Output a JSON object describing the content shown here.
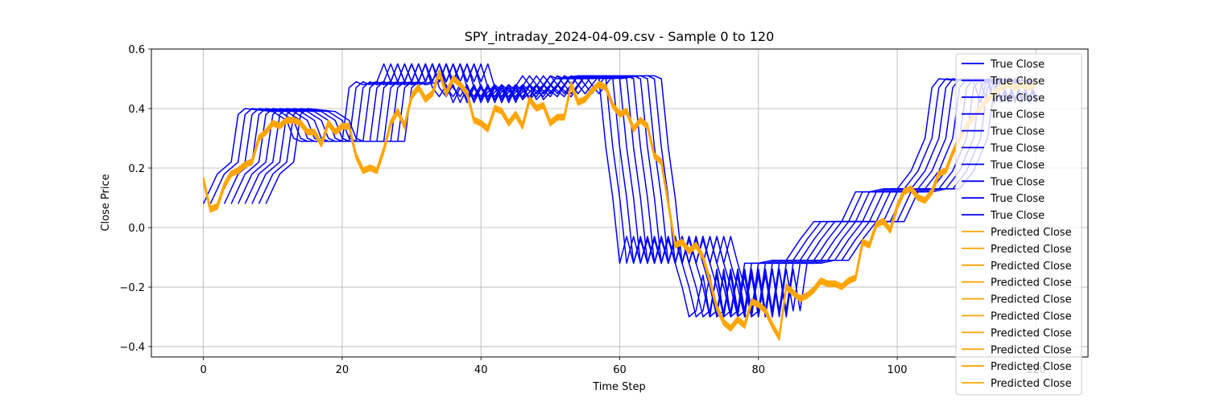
{
  "chart_data": {
    "type": "line",
    "title": "SPY_intraday_2024-04-09.csv - Sample 0 to 120",
    "xlabel": "Time Step",
    "ylabel": "Close Price",
    "xlim": [
      -7.5,
      127.5
    ],
    "ylim": [
      -0.435,
      0.6
    ],
    "xticks": [
      0,
      20,
      40,
      60,
      80,
      100,
      120
    ],
    "yticks": [
      -0.4,
      -0.2,
      0.0,
      0.2,
      0.4,
      0.6
    ],
    "xtick_labels": [
      "0",
      "20",
      "40",
      "60",
      "80",
      "100",
      "120"
    ],
    "ytick_labels": [
      "−0.4",
      "−0.2",
      "0.0",
      "0.2",
      "0.4",
      "0.6"
    ],
    "grid": true,
    "legend_position": "top-right",
    "colors": {
      "true": "#0000ff",
      "pred": "#ffa500"
    },
    "true_close_base": [
      {
        "x": 0,
        "y": 0.08
      },
      {
        "x": 2,
        "y": 0.18
      },
      {
        "x": 4,
        "y": 0.22
      },
      {
        "x": 5,
        "y": 0.38
      },
      {
        "x": 6,
        "y": 0.4
      },
      {
        "x": 10,
        "y": 0.39
      },
      {
        "x": 12,
        "y": 0.36
      },
      {
        "x": 13,
        "y": 0.3
      },
      {
        "x": 14,
        "y": 0.29
      },
      {
        "x": 20,
        "y": 0.29
      },
      {
        "x": 21,
        "y": 0.47
      },
      {
        "x": 22,
        "y": 0.49
      },
      {
        "x": 23,
        "y": 0.48
      },
      {
        "x": 25,
        "y": 0.49
      },
      {
        "x": 26,
        "y": 0.55
      },
      {
        "x": 27,
        "y": 0.49
      },
      {
        "x": 28,
        "y": 0.55
      },
      {
        "x": 29,
        "y": 0.49
      },
      {
        "x": 30,
        "y": 0.55
      },
      {
        "x": 31,
        "y": 0.49
      },
      {
        "x": 32,
        "y": 0.55
      },
      {
        "x": 33,
        "y": 0.47
      },
      {
        "x": 34,
        "y": 0.44
      },
      {
        "x": 35,
        "y": 0.48
      },
      {
        "x": 36,
        "y": 0.42
      },
      {
        "x": 37,
        "y": 0.47
      },
      {
        "x": 38,
        "y": 0.43
      },
      {
        "x": 39,
        "y": 0.48
      },
      {
        "x": 40,
        "y": 0.43
      },
      {
        "x": 42,
        "y": 0.48
      },
      {
        "x": 44,
        "y": 0.44
      },
      {
        "x": 46,
        "y": 0.51
      },
      {
        "x": 48,
        "y": 0.45
      },
      {
        "x": 50,
        "y": 0.51
      },
      {
        "x": 51,
        "y": 0.5
      },
      {
        "x": 54,
        "y": 0.51
      },
      {
        "x": 56,
        "y": 0.51
      },
      {
        "x": 57,
        "y": 0.5
      },
      {
        "x": 58,
        "y": 0.27
      },
      {
        "x": 59,
        "y": 0.1
      },
      {
        "x": 60,
        "y": -0.12
      },
      {
        "x": 61,
        "y": -0.03
      },
      {
        "x": 62,
        "y": -0.12
      },
      {
        "x": 63,
        "y": -0.04
      },
      {
        "x": 64,
        "y": -0.12
      },
      {
        "x": 65,
        "y": -0.03
      },
      {
        "x": 66,
        "y": -0.12
      },
      {
        "x": 67,
        "y": -0.03
      },
      {
        "x": 68,
        "y": -0.12
      },
      {
        "x": 69,
        "y": -0.2
      },
      {
        "x": 70,
        "y": -0.3
      },
      {
        "x": 71,
        "y": -0.28
      },
      {
        "x": 72,
        "y": -0.16
      },
      {
        "x": 73,
        "y": -0.3
      },
      {
        "x": 74,
        "y": -0.14
      },
      {
        "x": 75,
        "y": -0.3
      },
      {
        "x": 76,
        "y": -0.14
      },
      {
        "x": 77,
        "y": -0.28
      },
      {
        "x": 78,
        "y": -0.12
      },
      {
        "x": 80,
        "y": -0.12
      },
      {
        "x": 82,
        "y": -0.11
      },
      {
        "x": 84,
        "y": -0.11
      },
      {
        "x": 86,
        "y": -0.04
      },
      {
        "x": 88,
        "y": 0.02
      },
      {
        "x": 92,
        "y": 0.02
      },
      {
        "x": 94,
        "y": 0.12
      },
      {
        "x": 96,
        "y": 0.12
      },
      {
        "x": 98,
        "y": 0.13
      },
      {
        "x": 100,
        "y": 0.13
      },
      {
        "x": 102,
        "y": 0.19
      },
      {
        "x": 104,
        "y": 0.3
      },
      {
        "x": 105,
        "y": 0.47
      },
      {
        "x": 106,
        "y": 0.5
      },
      {
        "x": 111,
        "y": 0.49
      },
      {
        "x": 112,
        "y": 0.42
      },
      {
        "x": 113,
        "y": 0.5
      },
      {
        "x": 114,
        "y": 0.43
      },
      {
        "x": 115,
        "y": 0.5
      },
      {
        "x": 116,
        "y": 0.43
      },
      {
        "x": 117,
        "y": 0.5
      },
      {
        "x": 118,
        "y": 0.43
      },
      {
        "x": 119,
        "y": 0.5
      },
      {
        "x": 120,
        "y": 0.44
      }
    ],
    "true_close_series_shifts": [
      0,
      1,
      2,
      3,
      4,
      5,
      6,
      7,
      8,
      9
    ],
    "predicted_close": [
      {
        "x": 0,
        "y": 0.16
      },
      {
        "x": 1,
        "y": 0.06
      },
      {
        "x": 2,
        "y": 0.07
      },
      {
        "x": 3,
        "y": 0.14
      },
      {
        "x": 4,
        "y": 0.18
      },
      {
        "x": 5,
        "y": 0.19
      },
      {
        "x": 6,
        "y": 0.21
      },
      {
        "x": 7,
        "y": 0.22
      },
      {
        "x": 8,
        "y": 0.3
      },
      {
        "x": 9,
        "y": 0.32
      },
      {
        "x": 10,
        "y": 0.35
      },
      {
        "x": 11,
        "y": 0.34
      },
      {
        "x": 12,
        "y": 0.36
      },
      {
        "x": 13,
        "y": 0.36
      },
      {
        "x": 14,
        "y": 0.35
      },
      {
        "x": 15,
        "y": 0.32
      },
      {
        "x": 16,
        "y": 0.32
      },
      {
        "x": 17,
        "y": 0.28
      },
      {
        "x": 18,
        "y": 0.35
      },
      {
        "x": 19,
        "y": 0.32
      },
      {
        "x": 20,
        "y": 0.34
      },
      {
        "x": 21,
        "y": 0.34
      },
      {
        "x": 22,
        "y": 0.24
      },
      {
        "x": 23,
        "y": 0.19
      },
      {
        "x": 24,
        "y": 0.2
      },
      {
        "x": 25,
        "y": 0.19
      },
      {
        "x": 26,
        "y": 0.26
      },
      {
        "x": 27,
        "y": 0.35
      },
      {
        "x": 28,
        "y": 0.39
      },
      {
        "x": 29,
        "y": 0.34
      },
      {
        "x": 30,
        "y": 0.44
      },
      {
        "x": 31,
        "y": 0.47
      },
      {
        "x": 32,
        "y": 0.43
      },
      {
        "x": 33,
        "y": 0.45
      },
      {
        "x": 34,
        "y": 0.52
      },
      {
        "x": 35,
        "y": 0.45
      },
      {
        "x": 36,
        "y": 0.5
      },
      {
        "x": 37,
        "y": 0.48
      },
      {
        "x": 38,
        "y": 0.45
      },
      {
        "x": 39,
        "y": 0.36
      },
      {
        "x": 40,
        "y": 0.35
      },
      {
        "x": 41,
        "y": 0.33
      },
      {
        "x": 42,
        "y": 0.4
      },
      {
        "x": 43,
        "y": 0.39
      },
      {
        "x": 44,
        "y": 0.35
      },
      {
        "x": 45,
        "y": 0.38
      },
      {
        "x": 46,
        "y": 0.34
      },
      {
        "x": 47,
        "y": 0.43
      },
      {
        "x": 48,
        "y": 0.4
      },
      {
        "x": 49,
        "y": 0.41
      },
      {
        "x": 50,
        "y": 0.35
      },
      {
        "x": 51,
        "y": 0.37
      },
      {
        "x": 52,
        "y": 0.37
      },
      {
        "x": 53,
        "y": 0.48
      },
      {
        "x": 54,
        "y": 0.42
      },
      {
        "x": 55,
        "y": 0.43
      },
      {
        "x": 56,
        "y": 0.46
      },
      {
        "x": 57,
        "y": 0.48
      },
      {
        "x": 58,
        "y": 0.47
      },
      {
        "x": 59,
        "y": 0.41
      },
      {
        "x": 60,
        "y": 0.38
      },
      {
        "x": 61,
        "y": 0.39
      },
      {
        "x": 62,
        "y": 0.33
      },
      {
        "x": 63,
        "y": 0.36
      },
      {
        "x": 64,
        "y": 0.34
      },
      {
        "x": 65,
        "y": 0.24
      },
      {
        "x": 66,
        "y": 0.22
      },
      {
        "x": 67,
        "y": 0.08
      },
      {
        "x": 68,
        "y": -0.06
      },
      {
        "x": 69,
        "y": -0.05
      },
      {
        "x": 70,
        "y": -0.08
      },
      {
        "x": 71,
        "y": -0.06
      },
      {
        "x": 72,
        "y": -0.1
      },
      {
        "x": 73,
        "y": -0.18
      },
      {
        "x": 74,
        "y": -0.27
      },
      {
        "x": 75,
        "y": -0.32
      },
      {
        "x": 76,
        "y": -0.34
      },
      {
        "x": 77,
        "y": -0.31
      },
      {
        "x": 78,
        "y": -0.33
      },
      {
        "x": 79,
        "y": -0.25
      },
      {
        "x": 80,
        "y": -0.26
      },
      {
        "x": 81,
        "y": -0.28
      },
      {
        "x": 82,
        "y": -0.33
      },
      {
        "x": 83,
        "y": -0.37
      },
      {
        "x": 84,
        "y": -0.2
      },
      {
        "x": 85,
        "y": -0.22
      },
      {
        "x": 86,
        "y": -0.24
      },
      {
        "x": 87,
        "y": -0.23
      },
      {
        "x": 88,
        "y": -0.21
      },
      {
        "x": 89,
        "y": -0.18
      },
      {
        "x": 90,
        "y": -0.19
      },
      {
        "x": 91,
        "y": -0.19
      },
      {
        "x": 92,
        "y": -0.2
      },
      {
        "x": 93,
        "y": -0.18
      },
      {
        "x": 94,
        "y": -0.17
      },
      {
        "x": 95,
        "y": -0.05
      },
      {
        "x": 96,
        "y": -0.06
      },
      {
        "x": 97,
        "y": 0.01
      },
      {
        "x": 98,
        "y": 0.02
      },
      {
        "x": 99,
        "y": -0.01
      },
      {
        "x": 100,
        "y": 0.07
      },
      {
        "x": 101,
        "y": 0.12
      },
      {
        "x": 102,
        "y": 0.13
      },
      {
        "x": 103,
        "y": 0.1
      },
      {
        "x": 104,
        "y": 0.09
      },
      {
        "x": 105,
        "y": 0.12
      },
      {
        "x": 106,
        "y": 0.18
      },
      {
        "x": 107,
        "y": 0.19
      },
      {
        "x": 108,
        "y": 0.25
      },
      {
        "x": 109,
        "y": 0.3
      },
      {
        "x": 110,
        "y": 0.34
      },
      {
        "x": 111,
        "y": 0.37
      },
      {
        "x": 112,
        "y": 0.4
      },
      {
        "x": 113,
        "y": 0.43
      },
      {
        "x": 114,
        "y": 0.45
      },
      {
        "x": 115,
        "y": 0.47
      },
      {
        "x": 116,
        "y": 0.48
      },
      {
        "x": 117,
        "y": 0.47
      },
      {
        "x": 118,
        "y": 0.48
      },
      {
        "x": 119,
        "y": 0.47
      },
      {
        "x": 120,
        "y": 0.48
      }
    ],
    "predicted_close_series_offsets": [
      0,
      0.004,
      -0.004,
      0.008,
      -0.008,
      0.006,
      -0.006,
      0.002,
      -0.002,
      0.01
    ],
    "legend": [
      {
        "label": "True Close",
        "color": "#0000ff"
      },
      {
        "label": "True Close",
        "color": "#0000ff"
      },
      {
        "label": "True Close",
        "color": "#0000ff"
      },
      {
        "label": "True Close",
        "color": "#0000ff"
      },
      {
        "label": "True Close",
        "color": "#0000ff"
      },
      {
        "label": "True Close",
        "color": "#0000ff"
      },
      {
        "label": "True Close",
        "color": "#0000ff"
      },
      {
        "label": "True Close",
        "color": "#0000ff"
      },
      {
        "label": "True Close",
        "color": "#0000ff"
      },
      {
        "label": "True Close",
        "color": "#0000ff"
      },
      {
        "label": "Predicted Close",
        "color": "#ffa500"
      },
      {
        "label": "Predicted Close",
        "color": "#ffa500"
      },
      {
        "label": "Predicted Close",
        "color": "#ffa500"
      },
      {
        "label": "Predicted Close",
        "color": "#ffa500"
      },
      {
        "label": "Predicted Close",
        "color": "#ffa500"
      },
      {
        "label": "Predicted Close",
        "color": "#ffa500"
      },
      {
        "label": "Predicted Close",
        "color": "#ffa500"
      },
      {
        "label": "Predicted Close",
        "color": "#ffa500"
      },
      {
        "label": "Predicted Close",
        "color": "#ffa500"
      },
      {
        "label": "Predicted Close",
        "color": "#ffa500"
      }
    ]
  }
}
